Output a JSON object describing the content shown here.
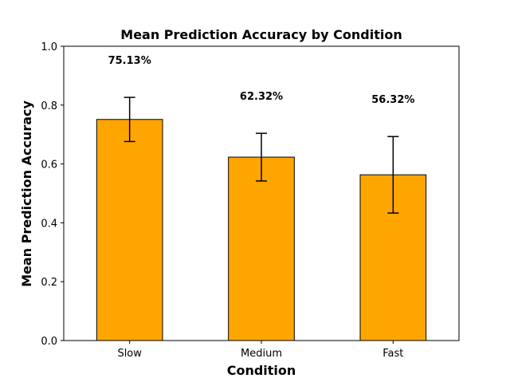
{
  "chart_data": {
    "type": "bar",
    "title": "Mean Prediction Accuracy by Condition",
    "xlabel": "Condition",
    "ylabel": "Mean Prediction Accuracy",
    "categories": [
      "Slow",
      "Medium",
      "Fast"
    ],
    "values": [
      0.7513,
      0.6232,
      0.5632
    ],
    "error": [
      0.075,
      0.081,
      0.13
    ],
    "data_labels": [
      "75.13%",
      "62.32%",
      "56.32%"
    ],
    "ylim": [
      0,
      1.0
    ],
    "yticks": [
      0.0,
      0.2,
      0.4,
      0.6,
      0.8,
      1.0
    ],
    "ytick_labels": [
      "0.0",
      "0.2",
      "0.4",
      "0.6",
      "0.8",
      "1.0"
    ],
    "grid": false,
    "bar_color": "#FFA500",
    "edge_color": "#000000"
  }
}
